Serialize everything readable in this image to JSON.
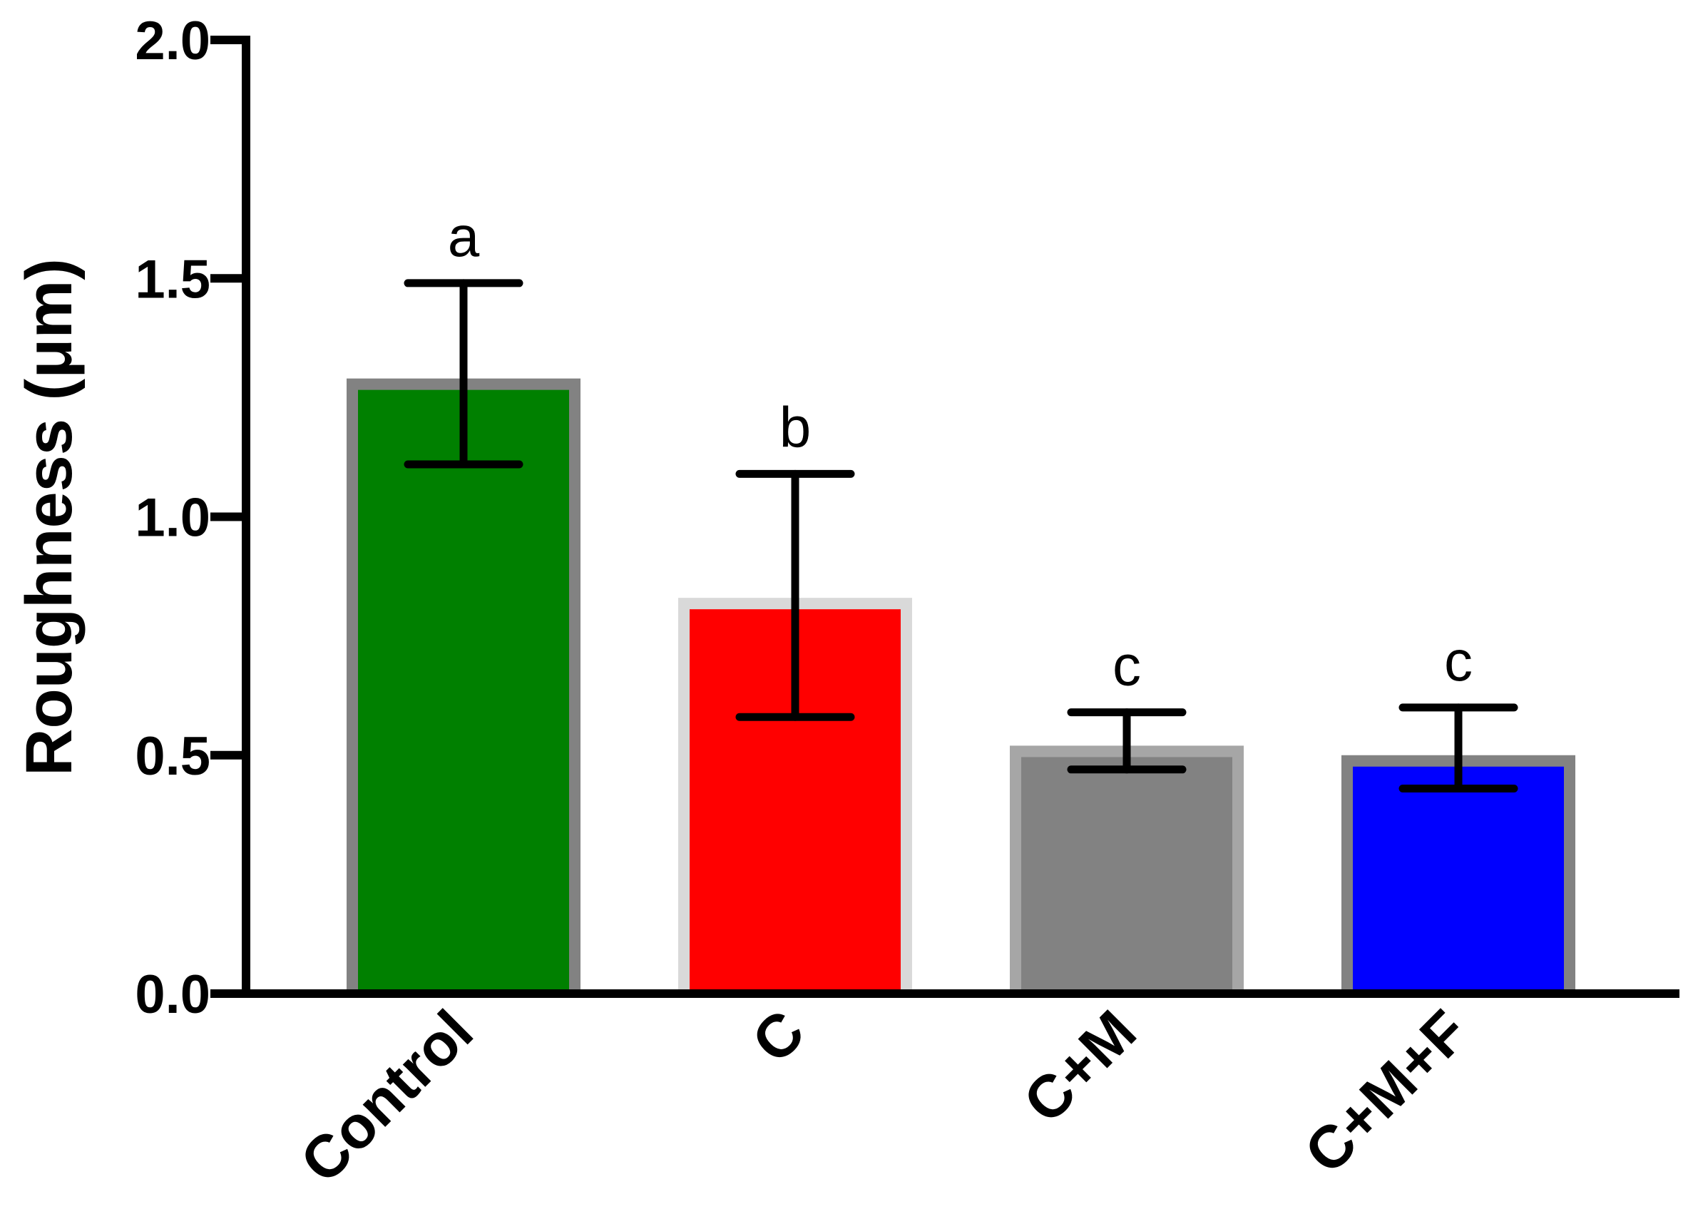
{
  "chart_data": {
    "type": "bar",
    "title": "",
    "xlabel": "",
    "ylabel": "Roughness (μm)",
    "ylim": [
      0,
      2.0
    ],
    "yticks": [
      0.0,
      0.5,
      1.0,
      1.5,
      2.0
    ],
    "ytick_labels": [
      "0.0",
      "0.5",
      "1.0",
      "1.5",
      "2.0"
    ],
    "categories": [
      "Control",
      "C",
      "C+M",
      "C+M+F"
    ],
    "values": [
      1.29,
      0.83,
      0.52,
      0.5
    ],
    "error_lower": [
      1.11,
      0.58,
      0.47,
      0.43
    ],
    "error_upper": [
      1.49,
      1.09,
      0.59,
      0.6
    ],
    "significance_labels": [
      "a",
      "b",
      "c",
      "c"
    ],
    "bar_colors": [
      "#008000",
      "#ff0000",
      "#828282",
      "#0000ff"
    ],
    "bar_border_colors": [
      "#828282",
      "#d9d9d9",
      "#a6a6a6",
      "#828282"
    ],
    "grid": false,
    "legend": "none"
  }
}
